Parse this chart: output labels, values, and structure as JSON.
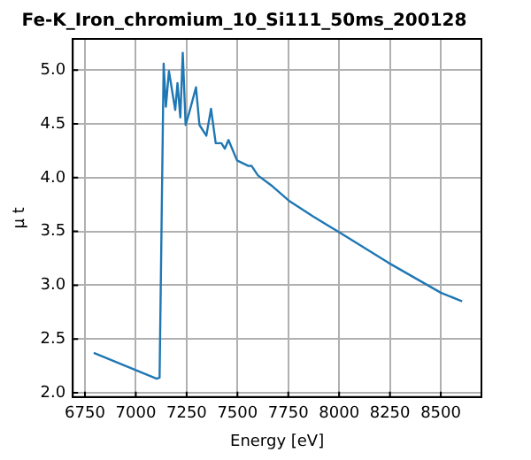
{
  "chart_data": {
    "type": "line",
    "title": "Fe-K_Iron_chromium_10_Si111_50ms_200128",
    "xlabel": "Energy [eV]",
    "ylabel": "μ t",
    "x": [
      6793,
      7103,
      7117,
      7137,
      7148,
      7163,
      7194,
      7205,
      7219,
      7231,
      7245,
      7262,
      7296,
      7313,
      7347,
      7370,
      7393,
      7421,
      7438,
      7456,
      7498,
      7552,
      7569,
      7601,
      7672,
      7757,
      7871,
      8002,
      8241,
      8500,
      8605
    ],
    "series": [
      {
        "color": "#1f77b4",
        "values": [
          2.37,
          2.13,
          2.14,
          5.06,
          4.66,
          4.99,
          4.63,
          4.88,
          4.56,
          5.16,
          4.49,
          4.6,
          4.84,
          4.49,
          4.39,
          4.64,
          4.32,
          4.32,
          4.27,
          4.35,
          4.16,
          4.11,
          4.11,
          4.02,
          3.92,
          3.78,
          3.64,
          3.49,
          3.21,
          2.93,
          2.85
        ]
      }
    ],
    "xlim": [
      6690,
      8700
    ],
    "xticks": [
      6750,
      7000,
      7250,
      7500,
      7750,
      8000,
      8250,
      8500
    ],
    "ylim": [
      1.96,
      5.29
    ],
    "yticks": [
      {
        "value": 2,
        "label": "2.0"
      },
      {
        "value": 2.5,
        "label": "2.5"
      },
      {
        "value": 3,
        "label": "3.0"
      },
      {
        "value": 3.5,
        "label": "3.5"
      },
      {
        "value": 4,
        "label": "4.0"
      },
      {
        "value": 4.5,
        "label": "4.5"
      },
      {
        "value": 5,
        "label": "5.0"
      }
    ],
    "grid": true,
    "legend": false,
    "marker": "none",
    "line_style": "solid"
  }
}
